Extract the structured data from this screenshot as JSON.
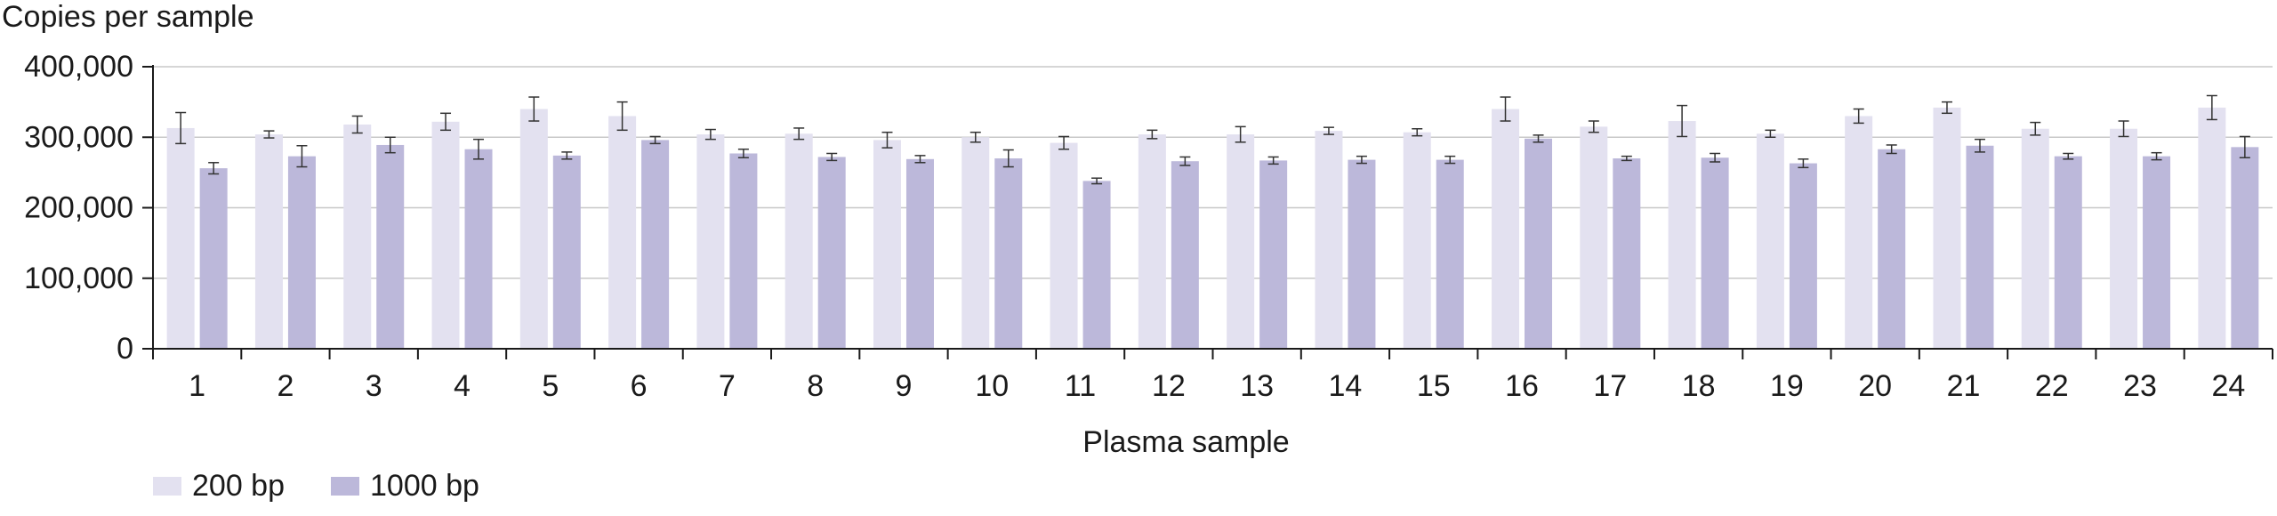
{
  "chart_data": {
    "type": "bar",
    "title": "",
    "ylabel": "Copies per sample",
    "xlabel": "Plasma sample",
    "ylim": [
      0,
      400000
    ],
    "yticks": [
      0,
      100000,
      200000,
      300000,
      400000
    ],
    "ytick_labels": [
      "0",
      "100,000",
      "200,000",
      "300,000",
      "400,000"
    ],
    "grid": true,
    "legend_position": "bottom-left",
    "categories": [
      "1",
      "2",
      "3",
      "4",
      "5",
      "6",
      "7",
      "8",
      "9",
      "10",
      "11",
      "12",
      "13",
      "14",
      "15",
      "16",
      "17",
      "18",
      "19",
      "20",
      "21",
      "22",
      "23",
      "24"
    ],
    "series": [
      {
        "name": "200 bp",
        "color": "#e3e1f0",
        "values": [
          313000,
          304000,
          318000,
          322000,
          340000,
          330000,
          304000,
          305000,
          296000,
          300000,
          292000,
          304000,
          304000,
          309000,
          307000,
          340000,
          315000,
          323000,
          305000,
          330000,
          342000,
          312000,
          312000,
          342000
        ],
        "errors": [
          22000,
          5000,
          12000,
          12000,
          17000,
          20000,
          7000,
          8000,
          11000,
          7000,
          9000,
          6000,
          11000,
          5000,
          5000,
          17000,
          8000,
          22000,
          5000,
          10000,
          8000,
          9000,
          11000,
          17000
        ]
      },
      {
        "name": "1000 bp",
        "color": "#bcb8da",
        "values": [
          256000,
          273000,
          289000,
          283000,
          274000,
          296000,
          277000,
          272000,
          269000,
          270000,
          238000,
          266000,
          267000,
          268000,
          268000,
          298000,
          270000,
          271000,
          263000,
          283000,
          288000,
          273000,
          273000,
          286000
        ],
        "errors": [
          8000,
          15000,
          11000,
          14000,
          5000,
          5000,
          6000,
          5000,
          5000,
          12000,
          4000,
          6000,
          5000,
          5000,
          5000,
          5000,
          3000,
          6000,
          6000,
          6000,
          9000,
          4000,
          5000,
          15000
        ]
      }
    ]
  }
}
